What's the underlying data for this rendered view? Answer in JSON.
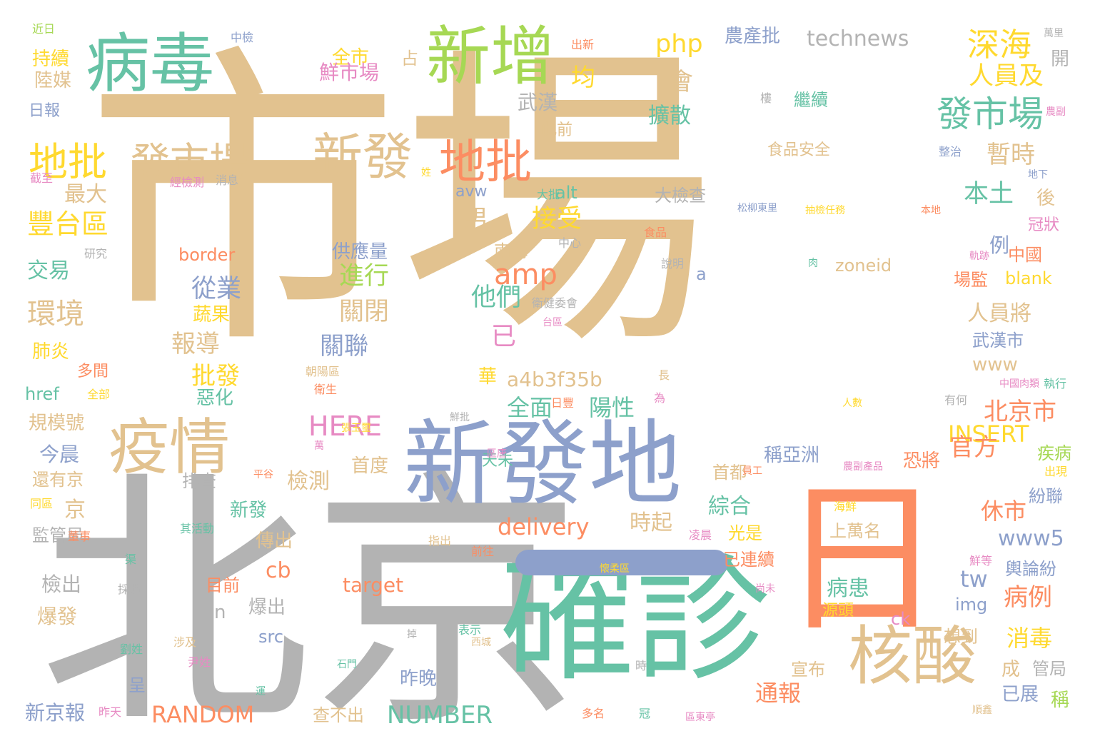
{
  "palette": {
    "tan": "#e2c28f",
    "grey": "#b3b3b3",
    "green": "#66c2a5",
    "blue": "#8da0cb",
    "orange": "#fc8d62",
    "yellow": "#ffd92f",
    "pink": "#e78ac3",
    "lime": "#a6d854"
  },
  "words": [
    {
      "text": "市場",
      "color": "tan"
    },
    {
      "text": "北京",
      "color": "grey"
    },
    {
      "text": "日",
      "color": "orange"
    },
    {
      "text": "確診",
      "color": "green"
    },
    {
      "text": "新發地",
      "color": "blue"
    },
    {
      "text": "一",
      "color": "blue"
    },
    {
      "text": "病毒",
      "color": "green"
    },
    {
      "text": "新增",
      "color": "lime"
    },
    {
      "text": "疫情",
      "color": "tan"
    },
    {
      "text": "核酸",
      "color": "tan"
    },
    {
      "text": "新發",
      "color": "tan"
    },
    {
      "text": "地批",
      "color": "orange"
    },
    {
      "text": "地批",
      "color": "yellow"
    },
    {
      "text": "發市場",
      "color": "tan"
    },
    {
      "text": "發市場",
      "color": "green"
    },
    {
      "text": "深海",
      "color": "yellow"
    },
    {
      "text": "人員及",
      "color": "yellow"
    },
    {
      "text": "technews",
      "color": "grey"
    },
    {
      "text": "農產批",
      "color": "blue"
    },
    {
      "text": "php",
      "color": "yellow"
    },
    {
      "text": "amp",
      "color": "orange"
    },
    {
      "text": "全市",
      "color": "yellow"
    },
    {
      "text": "占",
      "color": "tan"
    },
    {
      "text": "鮮市場",
      "color": "pink"
    },
    {
      "text": "均",
      "color": "yellow"
    },
    {
      "text": "會",
      "color": "tan"
    },
    {
      "text": "擴散",
      "color": "green"
    },
    {
      "text": "此前",
      "color": "tan"
    },
    {
      "text": "武漢",
      "color": "grey"
    },
    {
      "text": "暫時",
      "color": "tan"
    },
    {
      "text": "本土",
      "color": "green"
    },
    {
      "text": "最大",
      "color": "tan"
    },
    {
      "text": "豐台區",
      "color": "yellow"
    },
    {
      "text": "交易",
      "color": "green"
    },
    {
      "text": "環境",
      "color": "tan"
    },
    {
      "text": "持續",
      "color": "yellow"
    },
    {
      "text": "陸媒",
      "color": "tan"
    },
    {
      "text": "日報",
      "color": "blue"
    },
    {
      "text": "肺炎",
      "color": "yellow"
    },
    {
      "text": "多間",
      "color": "orange"
    },
    {
      "text": "href",
      "color": "green"
    },
    {
      "text": "規模號",
      "color": "tan"
    },
    {
      "text": "今晨",
      "color": "blue"
    },
    {
      "text": "還有京",
      "color": "tan"
    },
    {
      "text": "監管局",
      "color": "grey"
    },
    {
      "text": "檢出",
      "color": "grey"
    },
    {
      "text": "爆發",
      "color": "tan"
    },
    {
      "text": "新京報",
      "color": "blue"
    },
    {
      "text": "RANDOM",
      "color": "orange"
    },
    {
      "text": "NUMBER",
      "color": "green"
    },
    {
      "text": "HERE",
      "color": "pink"
    },
    {
      "text": "INSERT",
      "color": "yellow"
    },
    {
      "text": "delivery",
      "color": "orange"
    },
    {
      "text": "a4b3f35b",
      "color": "tan"
    },
    {
      "text": "www5",
      "color": "blue"
    },
    {
      "text": "www",
      "color": "tan"
    },
    {
      "text": "zoneid",
      "color": "tan"
    },
    {
      "text": "blank",
      "color": "yellow"
    },
    {
      "text": "target",
      "color": "orange"
    },
    {
      "text": "border",
      "color": "orange"
    },
    {
      "text": "avw",
      "color": "blue"
    },
    {
      "text": "alt",
      "color": "green"
    },
    {
      "text": "src",
      "color": "blue"
    },
    {
      "text": "img",
      "color": "blue"
    },
    {
      "text": "ck",
      "color": "pink"
    },
    {
      "text": "tw",
      "color": "blue"
    },
    {
      "text": "cb",
      "color": "orange"
    },
    {
      "text": "n",
      "color": "grey"
    },
    {
      "text": "a",
      "color": "blue"
    },
    {
      "text": "從業",
      "color": "blue"
    },
    {
      "text": "報導",
      "color": "tan"
    },
    {
      "text": "批發",
      "color": "yellow"
    },
    {
      "text": "蔬果",
      "color": "yellow"
    },
    {
      "text": "惡化",
      "color": "green"
    },
    {
      "text": "供應量",
      "color": "blue"
    },
    {
      "text": "進行",
      "color": "lime"
    },
    {
      "text": "關閉",
      "color": "tan"
    },
    {
      "text": "關聯",
      "color": "blue"
    },
    {
      "text": "男",
      "color": "tan"
    },
    {
      "text": "接受",
      "color": "yellow"
    },
    {
      "text": "南海",
      "color": "tan"
    },
    {
      "text": "他們",
      "color": "green"
    },
    {
      "text": "已",
      "color": "pink"
    },
    {
      "text": "全面",
      "color": "green"
    },
    {
      "text": "陽性",
      "color": "green"
    },
    {
      "text": "華",
      "color": "yellow"
    },
    {
      "text": "首度",
      "color": "tan"
    },
    {
      "text": "檢測",
      "color": "tan"
    },
    {
      "text": "天未",
      "color": "green"
    },
    {
      "text": "京",
      "color": "tan"
    },
    {
      "text": "時起",
      "color": "tan"
    },
    {
      "text": "綜合",
      "color": "green"
    },
    {
      "text": "首都",
      "color": "tan"
    },
    {
      "text": "光是",
      "color": "yellow"
    },
    {
      "text": "新發",
      "color": "green"
    },
    {
      "text": "排查",
      "color": "grey"
    },
    {
      "text": "傳出",
      "color": "tan"
    },
    {
      "text": "爆出",
      "color": "grey"
    },
    {
      "text": "目前",
      "color": "orange"
    },
    {
      "text": "昨晚",
      "color": "blue"
    },
    {
      "text": "查不出",
      "color": "tan"
    },
    {
      "text": "呈",
      "color": "blue"
    },
    {
      "text": "已連續",
      "color": "orange"
    },
    {
      "text": "上萬名",
      "color": "tan"
    },
    {
      "text": "病患",
      "color": "green"
    },
    {
      "text": "稱亞洲",
      "color": "blue"
    },
    {
      "text": "北京市",
      "color": "orange"
    },
    {
      "text": "官方",
      "color": "orange"
    },
    {
      "text": "休市",
      "color": "orange"
    },
    {
      "text": "病例",
      "color": "orange"
    },
    {
      "text": "消毒",
      "color": "yellow"
    },
    {
      "text": "想到",
      "color": "tan"
    },
    {
      "text": "宣布",
      "color": "tan"
    },
    {
      "text": "通報",
      "color": "orange"
    },
    {
      "text": "成",
      "color": "tan"
    },
    {
      "text": "已展",
      "color": "blue"
    },
    {
      "text": "稱",
      "color": "lime"
    },
    {
      "text": "管局",
      "color": "grey"
    },
    {
      "text": "源頭",
      "color": "yellow"
    },
    {
      "text": "恐將",
      "color": "orange"
    },
    {
      "text": "輿論紛",
      "color": "blue"
    },
    {
      "text": "紛聯",
      "color": "blue"
    },
    {
      "text": "疾病",
      "color": "lime"
    },
    {
      "text": "出現",
      "color": "yellow"
    },
    {
      "text": "人員將",
      "color": "tan"
    },
    {
      "text": "武漢市",
      "color": "blue"
    },
    {
      "text": "例",
      "color": "blue"
    },
    {
      "text": "中國",
      "color": "orange"
    },
    {
      "text": "場監",
      "color": "orange"
    },
    {
      "text": "後",
      "color": "tan"
    },
    {
      "text": "開",
      "color": "grey"
    },
    {
      "text": "大檢查",
      "color": "grey"
    },
    {
      "text": "食品安全",
      "color": "tan"
    },
    {
      "text": "繼續",
      "color": "green"
    },
    {
      "text": "近日",
      "color": "lime"
    },
    {
      "text": "中檢",
      "color": "blue"
    },
    {
      "text": "出新",
      "color": "orange"
    },
    {
      "text": "萬里",
      "color": "grey"
    },
    {
      "text": "農副",
      "color": "pink"
    },
    {
      "text": "整治",
      "color": "blue"
    },
    {
      "text": "地下",
      "color": "blue"
    },
    {
      "text": "冠狀",
      "color": "pink"
    },
    {
      "text": "本地",
      "color": "orange"
    },
    {
      "text": "抽檢任務",
      "color": "yellow"
    },
    {
      "text": "松柳東里",
      "color": "blue"
    },
    {
      "text": "大批",
      "color": "green"
    },
    {
      "text": "食品",
      "color": "orange"
    },
    {
      "text": "中心",
      "color": "grey"
    },
    {
      "text": "說明",
      "color": "grey"
    },
    {
      "text": "肉",
      "color": "green"
    },
    {
      "text": "研究",
      "color": "grey"
    },
    {
      "text": "經檢測",
      "color": "pink"
    },
    {
      "text": "消息",
      "color": "grey"
    },
    {
      "text": "截至",
      "color": "pink"
    },
    {
      "text": "姓",
      "color": "yellow"
    },
    {
      "text": "衛健委會",
      "color": "grey"
    },
    {
      "text": "台區",
      "color": "pink"
    },
    {
      "text": "軌跡",
      "color": "pink"
    },
    {
      "text": "長",
      "color": "tan"
    },
    {
      "text": "朝陽區",
      "color": "tan"
    },
    {
      "text": "衛生",
      "color": "orange"
    },
    {
      "text": "全部",
      "color": "yellow"
    },
    {
      "text": "日豐",
      "color": "orange"
    },
    {
      "text": "為",
      "color": "pink"
    },
    {
      "text": "人數",
      "color": "yellow"
    },
    {
      "text": "有何",
      "color": "grey"
    },
    {
      "text": "中國肉類",
      "color": "pink"
    },
    {
      "text": "執行",
      "color": "green"
    },
    {
      "text": "鮮批",
      "color": "grey"
    },
    {
      "text": "張玉璽",
      "color": "yellow"
    },
    {
      "text": "萬",
      "color": "pink"
    },
    {
      "text": "區唐",
      "color": "pink"
    },
    {
      "text": "平谷",
      "color": "orange"
    },
    {
      "text": "員工",
      "color": "orange"
    },
    {
      "text": "農副產品",
      "color": "pink"
    },
    {
      "text": "同區",
      "color": "yellow"
    },
    {
      "text": "董事",
      "color": "orange"
    },
    {
      "text": "其活動",
      "color": "green"
    },
    {
      "text": "海鮮",
      "color": "yellow"
    },
    {
      "text": "凌晨",
      "color": "pink"
    },
    {
      "text": "指出",
      "color": "tan"
    },
    {
      "text": "前往",
      "color": "orange"
    },
    {
      "text": "渠",
      "color": "green"
    },
    {
      "text": "鮮等",
      "color": "pink"
    },
    {
      "text": "採購",
      "color": "grey"
    },
    {
      "text": "懷柔區",
      "color": "yellow"
    },
    {
      "text": "尚未",
      "color": "pink"
    },
    {
      "text": "表示",
      "color": "green"
    },
    {
      "text": "西城",
      "color": "tan"
    },
    {
      "text": "涉及",
      "color": "tan"
    },
    {
      "text": "劉姓",
      "color": "green"
    },
    {
      "text": "尹姓",
      "color": "pink"
    },
    {
      "text": "石門",
      "color": "green"
    },
    {
      "text": "時",
      "color": "grey"
    },
    {
      "text": "運",
      "color": "green"
    },
    {
      "text": "昨天",
      "color": "pink"
    },
    {
      "text": "多名",
      "color": "orange"
    },
    {
      "text": "冠",
      "color": "green"
    },
    {
      "text": "區東亭",
      "color": "pink"
    },
    {
      "text": "順鑫",
      "color": "tan"
    },
    {
      "text": "樓",
      "color": "grey"
    },
    {
      "text": "掉",
      "color": "grey"
    }
  ]
}
